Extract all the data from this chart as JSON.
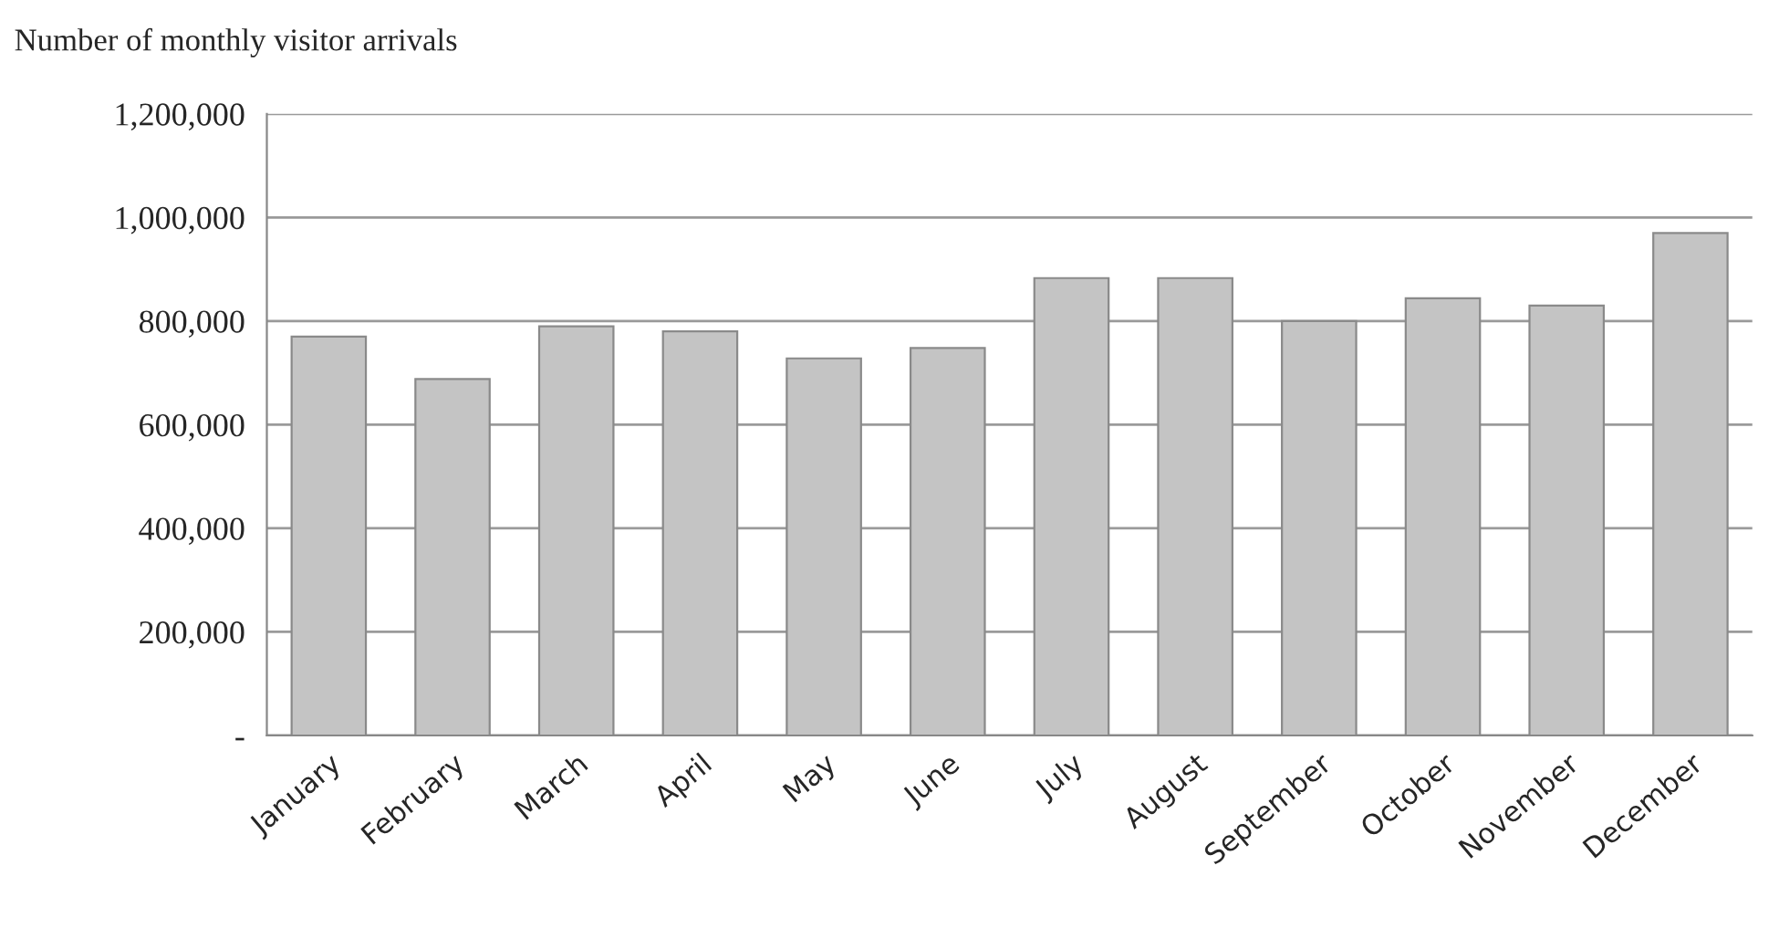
{
  "chart_data": {
    "type": "bar",
    "ylabel": "Number of monthly visitor arrivals",
    "categories": [
      "January",
      "February",
      "March",
      "April",
      "May",
      "June",
      "July",
      "August",
      "September",
      "October",
      "November",
      "December"
    ],
    "values": [
      770000,
      688000,
      790000,
      780000,
      728000,
      748000,
      883000,
      883000,
      800000,
      844000,
      830000,
      970000
    ],
    "color": "#c4c4c4",
    "ylim": [
      0,
      1200000
    ],
    "yticks": [
      {
        "value": 0,
        "label": "-"
      },
      {
        "value": 200000,
        "label": "200,000"
      },
      {
        "value": 400000,
        "label": "400,000"
      },
      {
        "value": 600000,
        "label": "600,000"
      },
      {
        "value": 800000,
        "label": "800,000"
      },
      {
        "value": 1000000,
        "label": "1,000,000"
      },
      {
        "value": 1200000,
        "label": "1,200,000"
      }
    ],
    "grid": "y",
    "legend": false
  }
}
